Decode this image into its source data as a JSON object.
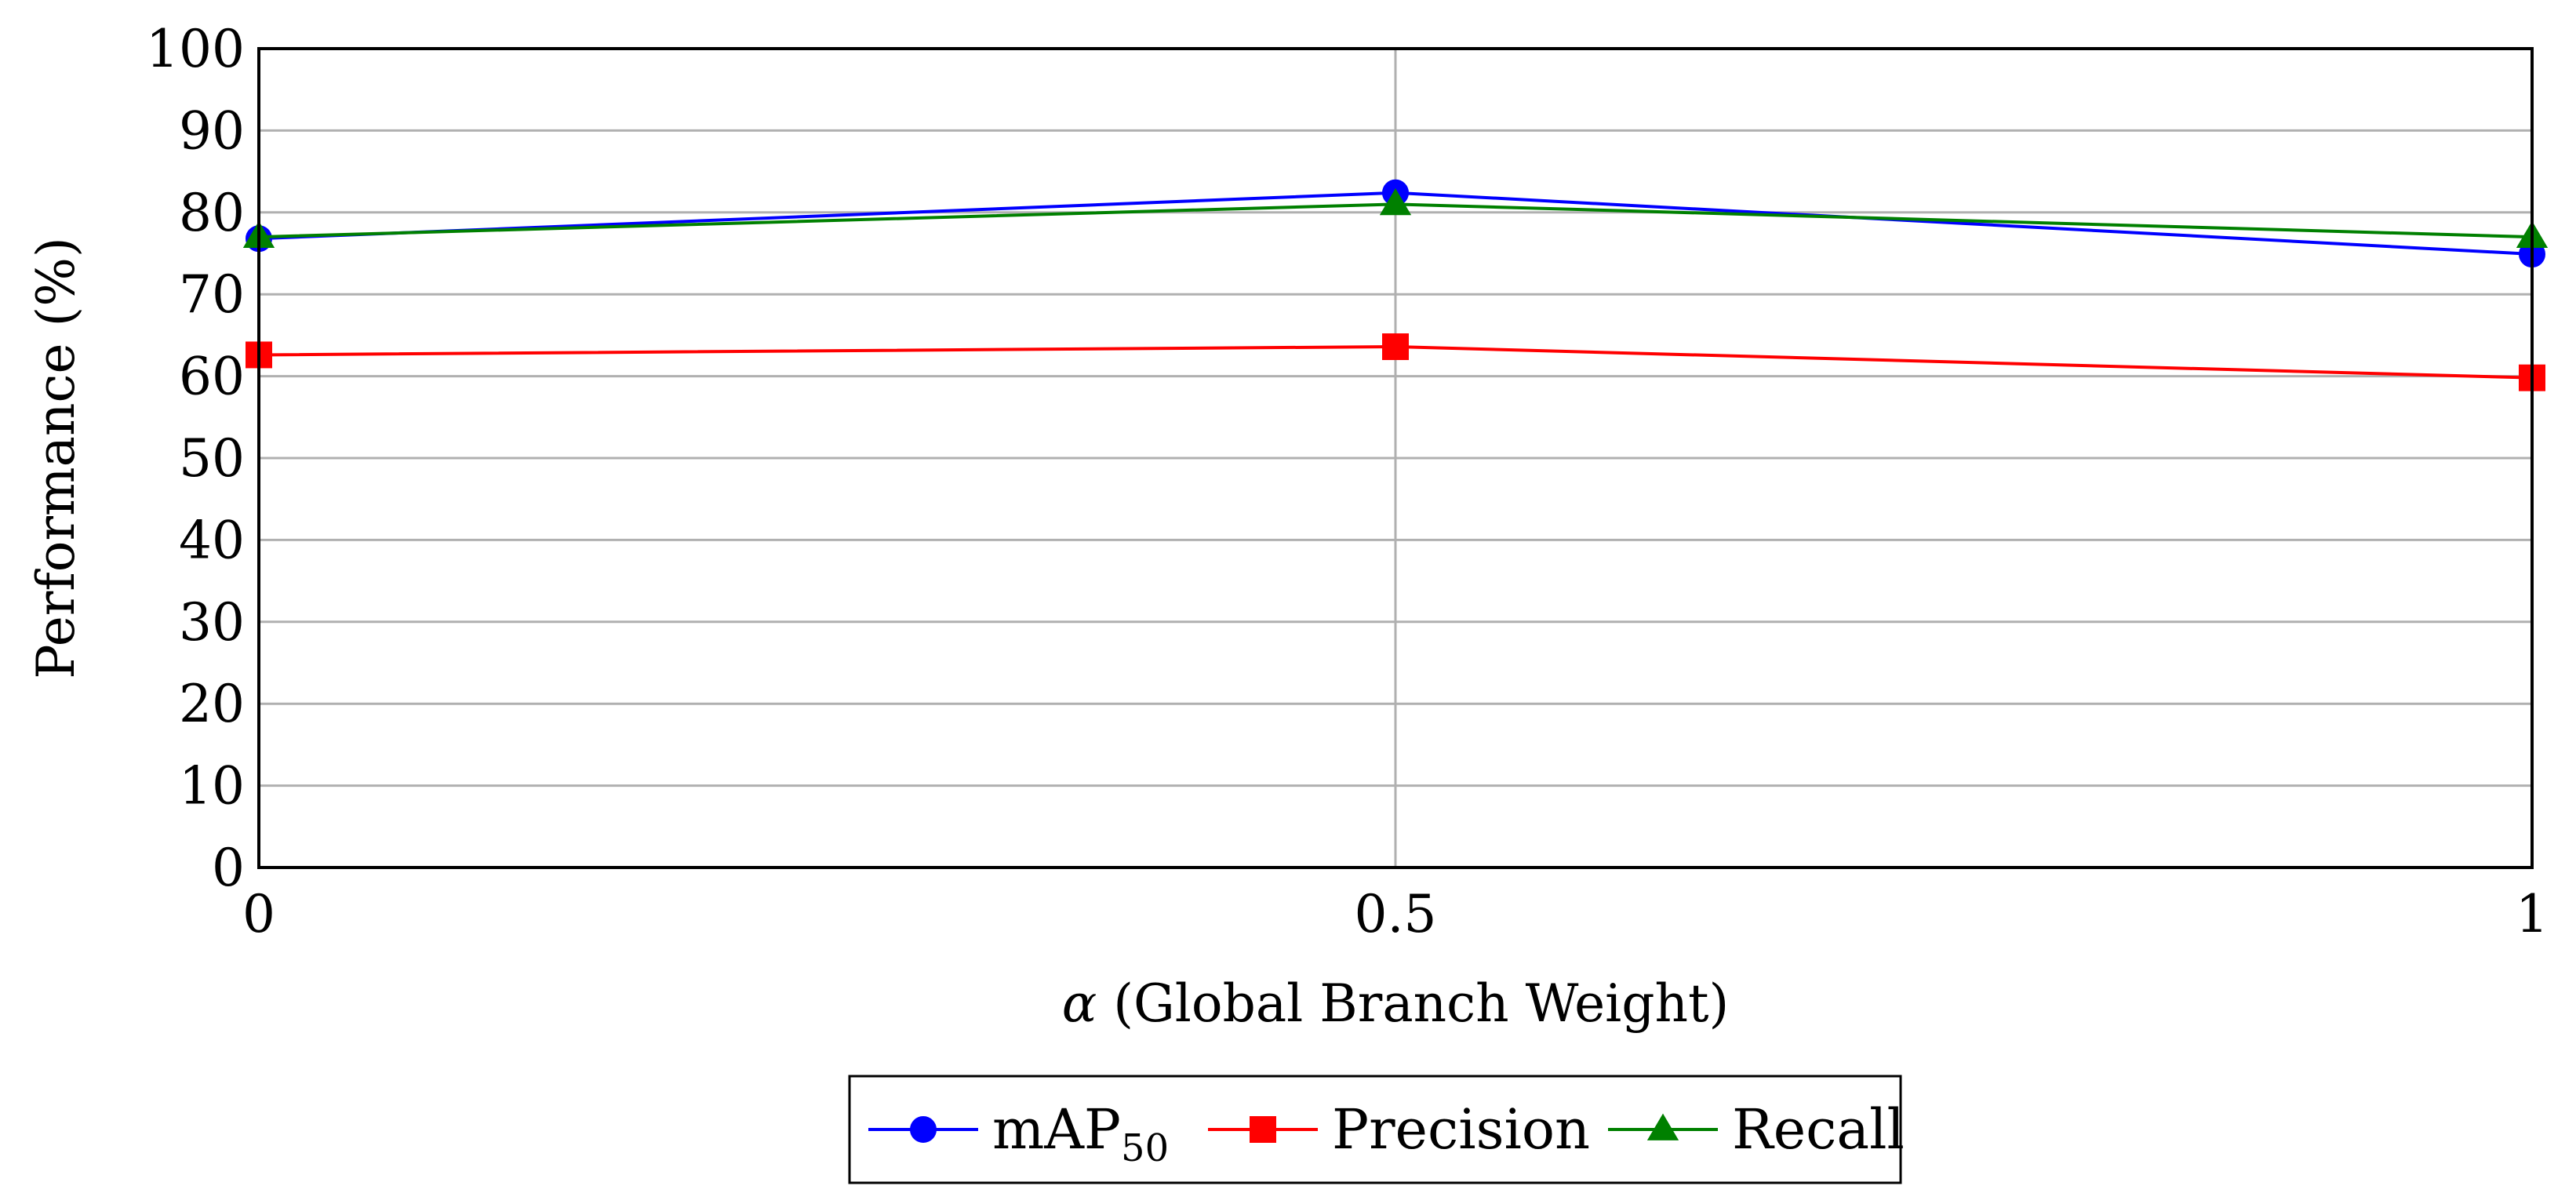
{
  "chart_data": {
    "type": "line",
    "x": [
      0,
      0.5,
      1
    ],
    "xlim": [
      0,
      1
    ],
    "xticks": [
      0,
      0.5,
      1
    ],
    "xtick_labels": [
      "0",
      "0.5",
      "1"
    ],
    "ylim": [
      0,
      100
    ],
    "yticks": [
      0,
      10,
      20,
      30,
      40,
      50,
      60,
      70,
      80,
      90,
      100
    ],
    "ytick_labels": [
      "0",
      "10",
      "20",
      "30",
      "40",
      "50",
      "60",
      "70",
      "80",
      "90",
      "100"
    ],
    "xlabel": {
      "symbol": "α",
      "text": " (Global Branch Weight)"
    },
    "ylabel": "Performance (%)",
    "grid": true,
    "legend_position": "bottom-center",
    "series": [
      {
        "name": "mAP",
        "name_subscript": "50",
        "values": [
          76.8,
          82.4,
          74.9
        ],
        "color": "#0000ff",
        "marker": "circle"
      },
      {
        "name": "Precision",
        "values": [
          62.6,
          63.6,
          59.8
        ],
        "color": "#ff0000",
        "marker": "square"
      },
      {
        "name": "Recall",
        "values": [
          77.0,
          81.0,
          77.0
        ],
        "color": "#008000",
        "marker": "triangle"
      }
    ]
  }
}
